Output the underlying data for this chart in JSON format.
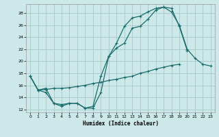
{
  "xlabel": "Humidex (Indice chaleur)",
  "background_color": "#cce8e8",
  "grid_color": "#aacccc",
  "line_color": "#1a6b6b",
  "xlim": [
    -0.5,
    23.5
  ],
  "ylim": [
    11.5,
    29.5
  ],
  "xticks": [
    0,
    1,
    2,
    3,
    4,
    5,
    6,
    7,
    8,
    9,
    10,
    11,
    12,
    13,
    14,
    15,
    16,
    17,
    18,
    19,
    20,
    21,
    22,
    23
  ],
  "yticks": [
    12,
    14,
    16,
    18,
    20,
    22,
    24,
    26,
    28
  ],
  "line1_x": [
    0,
    1,
    2,
    3,
    4,
    5,
    6,
    7,
    8,
    9,
    10,
    11,
    12,
    13,
    14,
    15,
    16,
    17,
    18,
    19,
    20,
    21,
    22,
    23
  ],
  "line1_y": [
    17.5,
    15.2,
    14.8,
    13.0,
    12.5,
    13.0,
    13.0,
    12.2,
    12.2,
    14.8,
    20.8,
    23.0,
    25.8,
    27.2,
    27.5,
    28.2,
    28.8,
    29.0,
    28.2,
    26.0,
    22.0,
    20.5,
    19.5,
    19.2
  ],
  "line2_x": [
    0,
    1,
    2,
    3,
    4,
    5,
    6,
    7,
    8,
    9,
    10,
    11,
    12,
    13,
    14,
    15,
    16,
    17,
    18,
    19,
    20
  ],
  "line2_y": [
    17.5,
    15.2,
    15.5,
    13.0,
    12.8,
    13.0,
    13.0,
    12.2,
    12.5,
    17.5,
    20.8,
    22.2,
    23.0,
    25.5,
    25.8,
    27.0,
    28.5,
    29.0,
    28.8,
    25.8,
    21.8
  ],
  "line3_x": [
    0,
    1,
    2,
    3,
    4,
    5,
    6,
    7,
    8,
    9,
    10,
    11,
    12,
    13,
    14,
    15,
    16,
    17,
    18,
    19
  ],
  "line3_y": [
    17.5,
    15.2,
    15.3,
    15.5,
    15.5,
    15.6,
    15.8,
    16.0,
    16.3,
    16.5,
    16.8,
    17.0,
    17.3,
    17.5,
    18.0,
    18.3,
    18.7,
    19.0,
    19.3,
    19.5
  ]
}
